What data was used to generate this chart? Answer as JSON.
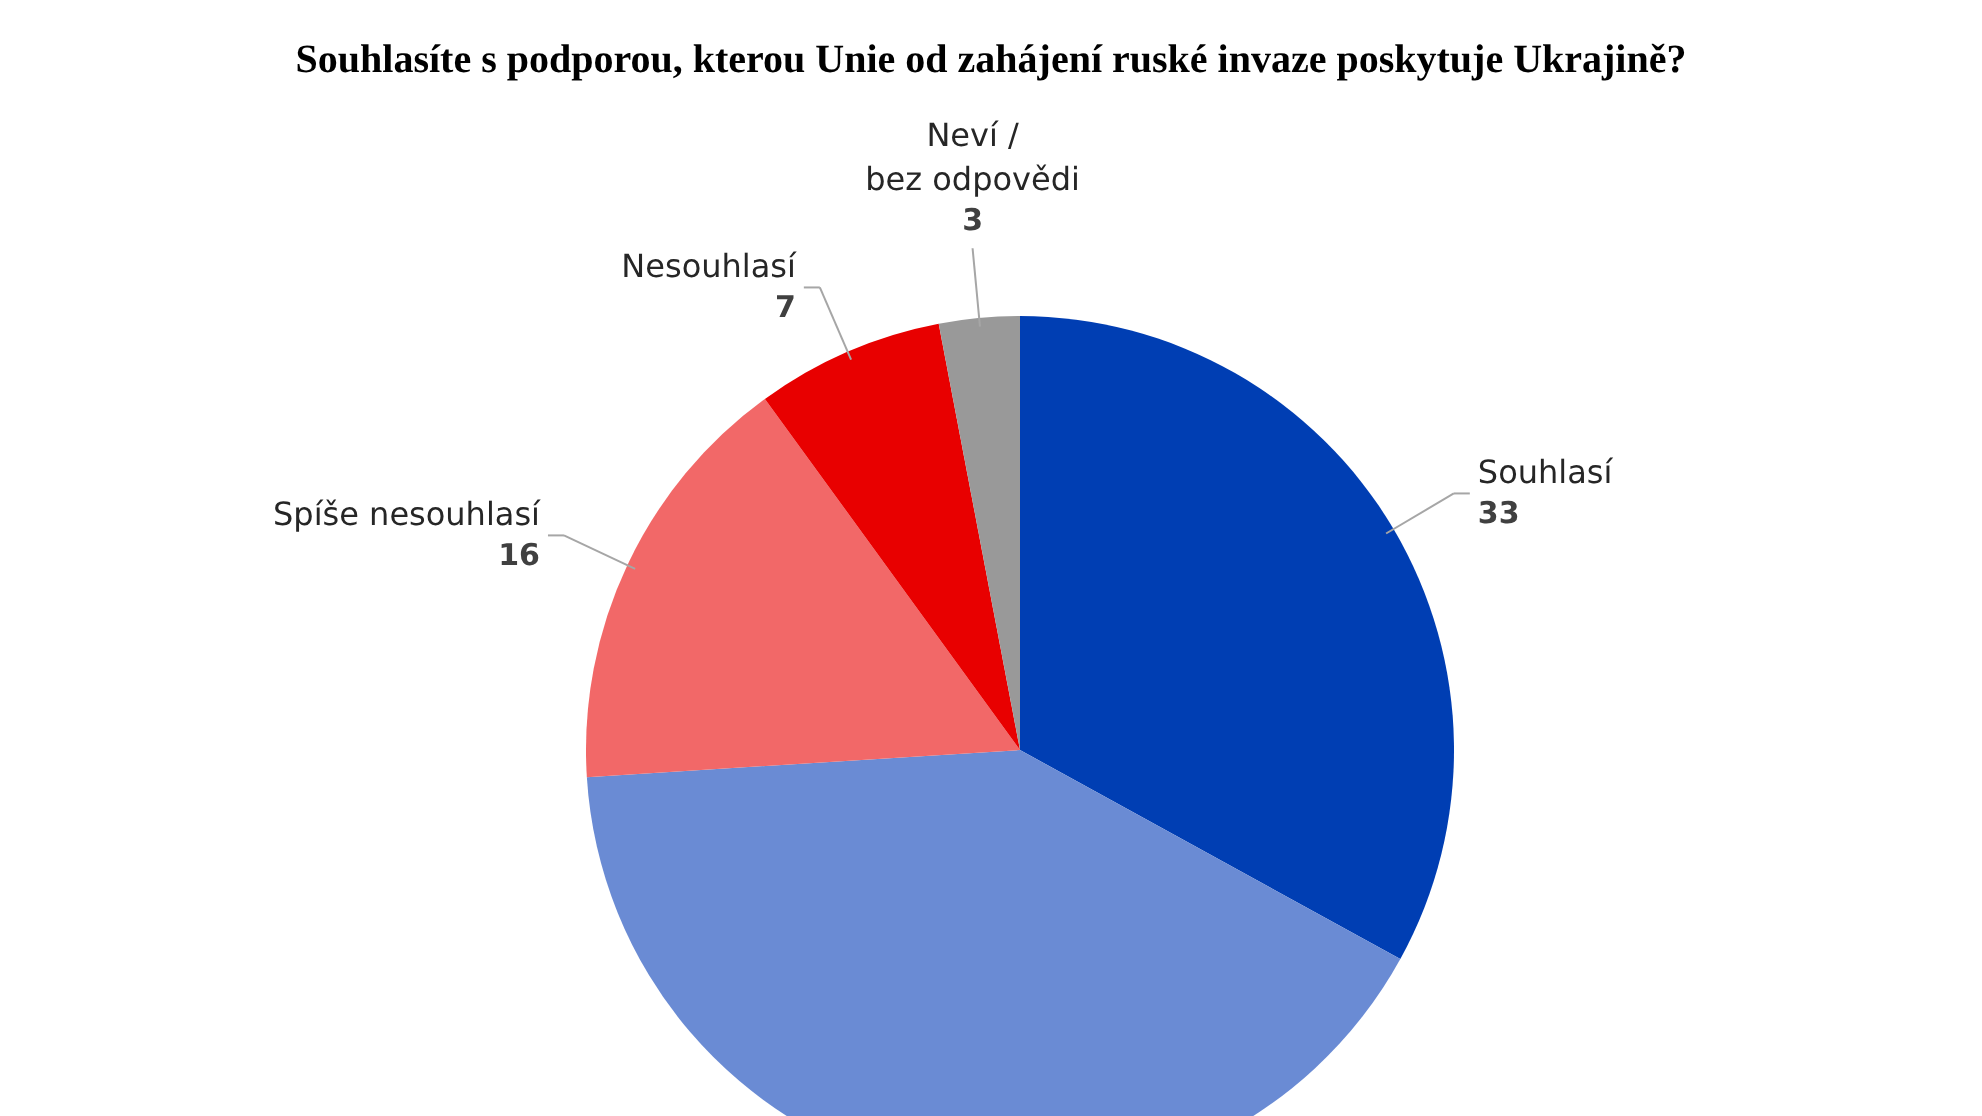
{
  "chart_data": {
    "type": "pie",
    "title": "Souhlasíte s podporou, kterou Unie od zahájení ruské invaze poskytuje Ukrajině?",
    "categories": [
      "Souhlasí",
      null,
      "Spíše nesouhlasí",
      "Nesouhlasí",
      "Neví /\nbez odpovědi"
    ],
    "values": [
      33,
      41,
      16,
      7,
      3
    ],
    "colors": [
      "#003eb3",
      "#6a8bd4",
      "#f26868",
      "#e80000",
      "#999999"
    ],
    "value_labels": [
      "33",
      null,
      "16",
      "7",
      "3"
    ]
  }
}
